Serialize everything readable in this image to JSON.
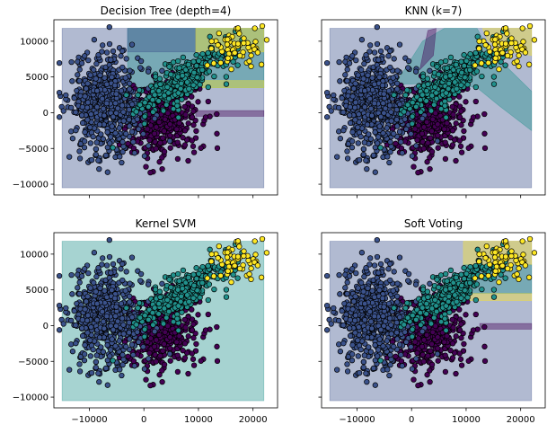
{
  "chart_data": [
    {
      "type": "scatter",
      "title": "Decision Tree (depth=4)",
      "xlabel": "",
      "ylabel": "",
      "xlim": [
        -16500,
        24500
      ],
      "ylim": [
        -11500,
        13000
      ],
      "yticks": [
        10000,
        5000,
        0,
        -5000,
        -10000
      ],
      "xticks": [
        -10000,
        0,
        10000,
        20000
      ],
      "show_x_tick_labels": false,
      "show_y_tick_labels": true,
      "decision_regions": [
        {
          "class": 1,
          "x": [
            -15000,
            22000
          ],
          "y": [
            -10500,
            11800
          ]
        },
        {
          "class": 2,
          "x": [
            -3000,
            22000
          ],
          "y": [
            3500,
            11800
          ]
        },
        {
          "class": 1,
          "x": [
            -3000,
            9500
          ],
          "y": [
            8500,
            11800
          ]
        },
        {
          "class": 3,
          "x": [
            9500,
            22000
          ],
          "y": [
            8500,
            11800
          ]
        },
        {
          "class": 3,
          "x": [
            8500,
            22000
          ],
          "y": [
            3500,
            4500
          ]
        },
        {
          "class": 0,
          "x": [
            9500,
            22000
          ],
          "y": [
            -500,
            300
          ]
        }
      ]
    },
    {
      "type": "scatter",
      "title": "KNN (k=7)",
      "xlabel": "",
      "ylabel": "",
      "xlim": [
        -16500,
        24500
      ],
      "ylim": [
        -11500,
        13000
      ],
      "yticks": [
        10000,
        5000,
        0,
        -5000,
        -10000
      ],
      "xticks": [
        -10000,
        0,
        10000,
        20000
      ],
      "show_x_tick_labels": false,
      "show_y_tick_labels": false,
      "decision_regions": [
        {
          "class": 1,
          "x": [
            -15000,
            22000
          ],
          "y": [
            -10500,
            11800
          ]
        },
        {
          "class": 2,
          "poly": [
            [
              -3000,
              4000
            ],
            [
              2000,
              10000
            ],
            [
              6000,
              11800
            ],
            [
              12000,
              11800
            ],
            [
              14000,
              9000
            ],
            [
              22000,
              3000
            ],
            [
              22000,
              -2500
            ],
            [
              16000,
              1000
            ],
            [
              12000,
              3500
            ],
            [
              6000,
              4200
            ],
            [
              0,
              4000
            ]
          ]
        },
        {
          "class": 3,
          "poly": [
            [
              13000,
              11800
            ],
            [
              22000,
              11800
            ],
            [
              22000,
              8000
            ],
            [
              18000,
              8500
            ],
            [
              14000,
              10000
            ]
          ]
        },
        {
          "class": 0,
          "poly": [
            [
              1500,
              6000
            ],
            [
              3000,
              11500
            ],
            [
              4500,
              11800
            ],
            [
              4000,
              8000
            ]
          ]
        }
      ]
    },
    {
      "type": "scatter",
      "title": "Kernel SVM",
      "xlabel": "",
      "ylabel": "",
      "xlim": [
        -16500,
        24500
      ],
      "ylim": [
        -11500,
        13000
      ],
      "yticks": [
        10000,
        5000,
        0,
        -5000,
        -10000
      ],
      "xticks": [
        -10000,
        0,
        10000,
        20000
      ],
      "show_x_tick_labels": true,
      "show_y_tick_labels": true,
      "decision_regions": [
        {
          "class": 2,
          "x": [
            -15000,
            22000
          ],
          "y": [
            -10500,
            11800
          ]
        }
      ]
    },
    {
      "type": "scatter",
      "title": "Soft Voting",
      "xlabel": "",
      "ylabel": "",
      "xlim": [
        -16500,
        24500
      ],
      "ylim": [
        -11500,
        13000
      ],
      "yticks": [
        10000,
        5000,
        0,
        -5000,
        -10000
      ],
      "xticks": [
        -10000,
        0,
        10000,
        20000
      ],
      "show_x_tick_labels": true,
      "show_y_tick_labels": false,
      "decision_regions": [
        {
          "class": 1,
          "x": [
            -15000,
            22000
          ],
          "y": [
            -10500,
            11800
          ]
        },
        {
          "class": 3,
          "x": [
            9500,
            22000
          ],
          "y": [
            8500,
            11800
          ]
        },
        {
          "class": 2,
          "x": [
            9500,
            22000
          ],
          "y": [
            4500,
            8500
          ]
        },
        {
          "class": 3,
          "x": [
            9500,
            22000
          ],
          "y": [
            3500,
            4500
          ]
        },
        {
          "class": 0,
          "x": [
            12500,
            22000
          ],
          "y": [
            -500,
            300
          ]
        },
        {
          "class": 0,
          "x": [
            4500,
            7500
          ],
          "y": [
            -500,
            300
          ]
        }
      ]
    }
  ],
  "scatter_points": {
    "seed": 7,
    "classes": [
      {
        "class": 0,
        "color": "#440154",
        "count": 380,
        "center": [
          3500,
          -1000
        ],
        "spread": [
          3200,
          2600
        ]
      },
      {
        "class": 1,
        "color": "#3b528b",
        "count": 560,
        "center": [
          -6500,
          1000
        ],
        "spread": [
          3600,
          3600
        ]
      },
      {
        "class": 2,
        "color": "#21918c",
        "count": 320,
        "center": [
          7000,
          4500
        ],
        "spread": [
          4500,
          1500
        ],
        "trend": 0.45
      },
      {
        "class": 3,
        "color": "#fde725",
        "count": 60,
        "center": [
          17000,
          9200
        ],
        "spread": [
          2300,
          1200
        ]
      }
    ]
  },
  "colors": {
    "region_class_0": "#440154",
    "region_class_1": "#3b528b",
    "region_class_2": "#21918c",
    "region_class_3": "#fde725",
    "region_alpha": 0.4,
    "point_edge": "#000000",
    "axes_edge": "#000000",
    "background": "#ffffff"
  }
}
